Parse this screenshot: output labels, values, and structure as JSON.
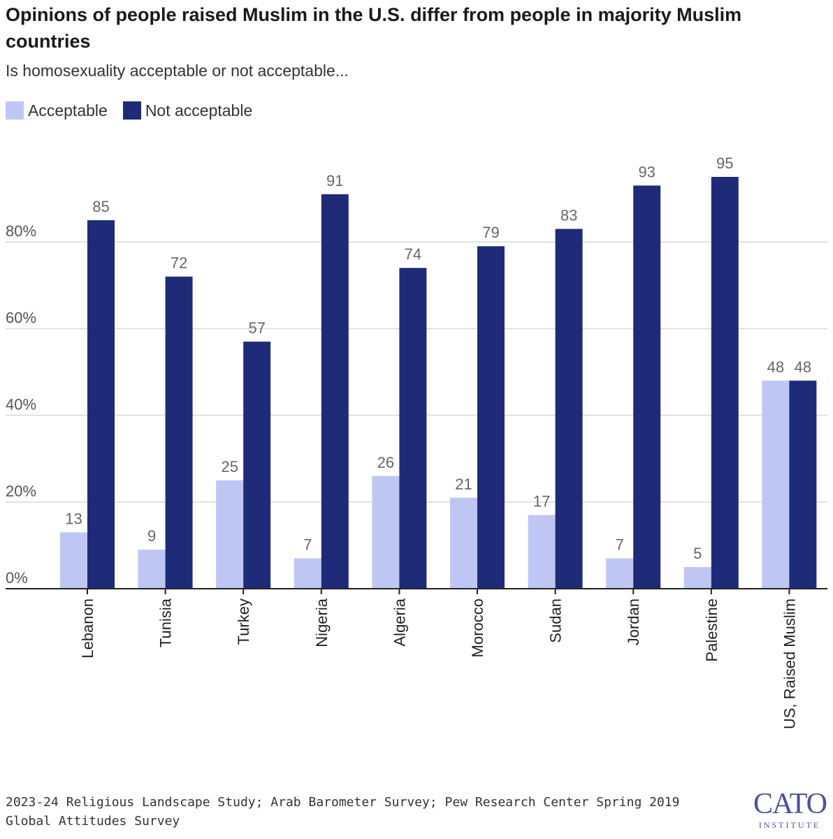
{
  "header": {
    "title": "Opinions of people raised Muslim in the U.S. differ from people in majority Muslim countries",
    "subtitle": "Is homosexuality acceptable or not acceptable..."
  },
  "legend": {
    "items": [
      {
        "label": "Acceptable",
        "color": "#c0c6f4"
      },
      {
        "label": "Not acceptable",
        "color": "#1f2b78"
      }
    ]
  },
  "chart_data": {
    "type": "bar",
    "categories": [
      "Lebanon",
      "Tunisia",
      "Turkey",
      "Nigeria",
      "Algeria",
      "Morocco",
      "Sudan",
      "Jordan",
      "Palestine",
      "US, Raised Muslim"
    ],
    "series": [
      {
        "name": "Acceptable",
        "color": "#c0c6f4",
        "values": [
          13,
          9,
          25,
          7,
          26,
          21,
          17,
          7,
          5,
          48
        ]
      },
      {
        "name": "Not acceptable",
        "color": "#1f2b78",
        "values": [
          85,
          72,
          57,
          91,
          74,
          79,
          83,
          93,
          95,
          48
        ]
      }
    ],
    "yticks": [
      "0%",
      "20%",
      "40%",
      "60%",
      "80%"
    ],
    "ytick_values": [
      0,
      20,
      40,
      60,
      80
    ],
    "ylim": [
      0,
      100
    ],
    "grid": true,
    "legend": "top-left"
  },
  "footer": {
    "source": "2023-24 Religious Landscape Study; Arab Barometer Survey; Pew Research Center Spring 2019 Global Attitudes Survey"
  },
  "logo": {
    "main": "CATO",
    "sub": "INSTITUTE"
  }
}
